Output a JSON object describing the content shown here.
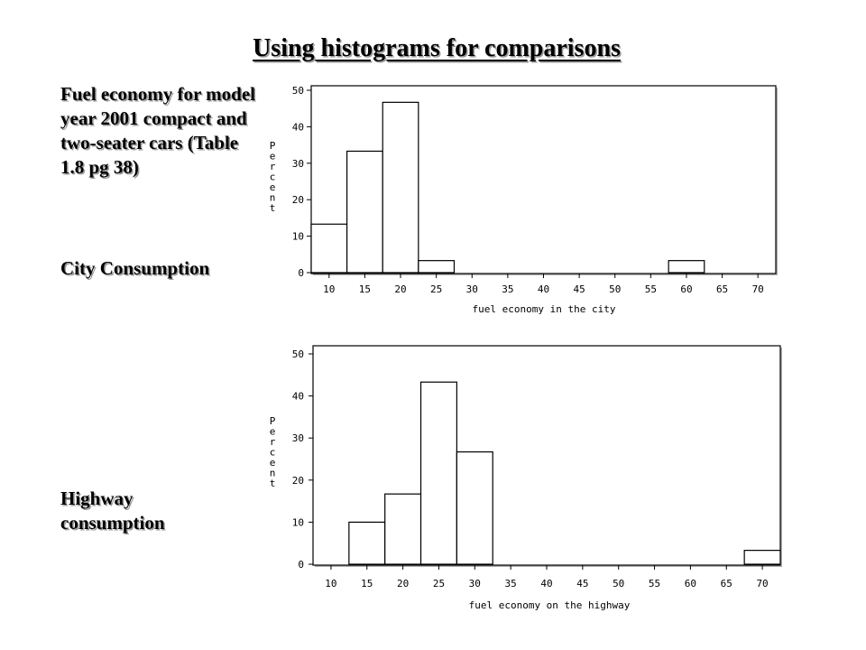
{
  "slide": {
    "title": "Using histograms for comparisons",
    "caption_main": "Fuel economy for model year 2001 compact and two-seater cars (Table 1.8 pg 38)",
    "caption_city": "City Consumption",
    "caption_highway": "Highway consumption"
  },
  "chart_data": [
    {
      "type": "bar",
      "title": "",
      "xlabel": "fuel economy in the city",
      "ylabel": "Percent",
      "bin_width": 5,
      "x_ticks": [
        10,
        15,
        20,
        25,
        30,
        35,
        40,
        45,
        50,
        55,
        60,
        65,
        70
      ],
      "y_ticks": [
        0,
        10,
        20,
        30,
        40,
        50
      ],
      "ylim": [
        0,
        50
      ],
      "bins": [
        {
          "center": 10,
          "value": 13.3
        },
        {
          "center": 15,
          "value": 33.3
        },
        {
          "center": 20,
          "value": 46.7
        },
        {
          "center": 25,
          "value": 3.3
        },
        {
          "center": 60,
          "value": 3.3
        }
      ]
    },
    {
      "type": "bar",
      "title": "",
      "xlabel": "fuel economy on the highway",
      "ylabel": "Percent",
      "bin_width": 5,
      "x_ticks": [
        10,
        15,
        20,
        25,
        30,
        35,
        40,
        45,
        50,
        55,
        60,
        65,
        70
      ],
      "y_ticks": [
        0,
        10,
        20,
        30,
        40,
        50
      ],
      "ylim": [
        0,
        50
      ],
      "bins": [
        {
          "center": 15,
          "value": 10
        },
        {
          "center": 20,
          "value": 16.7
        },
        {
          "center": 25,
          "value": 43.3
        },
        {
          "center": 30,
          "value": 26.7
        },
        {
          "center": 70,
          "value": 3.3
        }
      ]
    }
  ]
}
